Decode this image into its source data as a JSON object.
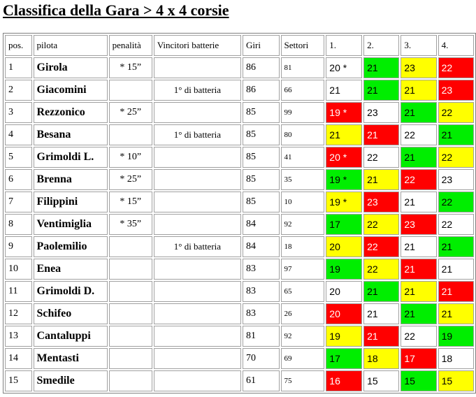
{
  "title": "Classifica della Gara > 4 x 4 corsie",
  "headers": {
    "pos": "pos.",
    "pilota": "pilota",
    "penalita": "penalità",
    "vincitori": "Vincitori batterie",
    "giri": "Giri",
    "settori": "Settori",
    "h1": "1.",
    "h2": "2.",
    "h3": "3.",
    "h4": "4."
  },
  "colors": {
    "green": "#00ee00",
    "yellow": "#ffff00",
    "red": "#ff0000",
    "white": "#ffffff"
  },
  "rows": [
    {
      "pos": "1",
      "pilota": "Girola",
      "penalita": "* 15”",
      "vincitori": "",
      "giri": "86",
      "settori": "81",
      "heats": [
        {
          "v": "20 *",
          "c": "white"
        },
        {
          "v": "21",
          "c": "green"
        },
        {
          "v": "23",
          "c": "yellow"
        },
        {
          "v": "22",
          "c": "red"
        }
      ]
    },
    {
      "pos": "2",
      "pilota": "Giacomini",
      "penalita": "",
      "vincitori": "1° di batteria",
      "giri": "86",
      "settori": "66",
      "heats": [
        {
          "v": "21",
          "c": "white"
        },
        {
          "v": "21",
          "c": "green"
        },
        {
          "v": "21",
          "c": "yellow"
        },
        {
          "v": "23",
          "c": "red"
        }
      ]
    },
    {
      "pos": "3",
      "pilota": "Rezzonico",
      "penalita": "* 25”",
      "vincitori": "",
      "giri": "85",
      "settori": "99",
      "heats": [
        {
          "v": "19 *",
          "c": "red"
        },
        {
          "v": "23",
          "c": "white"
        },
        {
          "v": "21",
          "c": "green"
        },
        {
          "v": "22",
          "c": "yellow"
        }
      ]
    },
    {
      "pos": "4",
      "pilota": "Besana",
      "penalita": "",
      "vincitori": "1° di batteria",
      "giri": "85",
      "settori": "80",
      "heats": [
        {
          "v": "21",
          "c": "yellow"
        },
        {
          "v": "21",
          "c": "red"
        },
        {
          "v": "22",
          "c": "white"
        },
        {
          "v": "21",
          "c": "green"
        }
      ]
    },
    {
      "pos": "5",
      "pilota": "Grimoldi L.",
      "penalita": "* 10”",
      "vincitori": "",
      "giri": "85",
      "settori": "41",
      "heats": [
        {
          "v": "20 *",
          "c": "red"
        },
        {
          "v": "22",
          "c": "white"
        },
        {
          "v": "21",
          "c": "green"
        },
        {
          "v": "22",
          "c": "yellow"
        }
      ]
    },
    {
      "pos": "6",
      "pilota": "Brenna",
      "penalita": "* 25”",
      "vincitori": "",
      "giri": "85",
      "settori": "35",
      "heats": [
        {
          "v": "19 *",
          "c": "green"
        },
        {
          "v": "21",
          "c": "yellow"
        },
        {
          "v": "22",
          "c": "red"
        },
        {
          "v": "23",
          "c": "white"
        }
      ]
    },
    {
      "pos": "7",
      "pilota": "Filippini",
      "penalita": "* 15”",
      "vincitori": "",
      "giri": "85",
      "settori": "10",
      "heats": [
        {
          "v": "19 *",
          "c": "yellow"
        },
        {
          "v": "23",
          "c": "red"
        },
        {
          "v": "21",
          "c": "white"
        },
        {
          "v": "22",
          "c": "green"
        }
      ]
    },
    {
      "pos": "8",
      "pilota": "Ventimiglia",
      "penalita": "* 35”",
      "vincitori": "",
      "giri": "84",
      "settori": "92",
      "heats": [
        {
          "v": "17",
          "c": "green"
        },
        {
          "v": "22",
          "c": "yellow"
        },
        {
          "v": "23",
          "c": "red"
        },
        {
          "v": "22",
          "c": "white"
        }
      ]
    },
    {
      "pos": "9",
      "pilota": "Paolemilio",
      "penalita": "",
      "vincitori": "1° di batteria",
      "giri": "84",
      "settori": "18",
      "heats": [
        {
          "v": "20",
          "c": "yellow"
        },
        {
          "v": "22",
          "c": "red"
        },
        {
          "v": "21",
          "c": "white"
        },
        {
          "v": "21",
          "c": "green"
        }
      ]
    },
    {
      "pos": "10",
      "pilota": "Enea",
      "penalita": "",
      "vincitori": "",
      "giri": "83",
      "settori": "97",
      "heats": [
        {
          "v": "19",
          "c": "green"
        },
        {
          "v": "22",
          "c": "yellow"
        },
        {
          "v": "21",
          "c": "red"
        },
        {
          "v": "21",
          "c": "white"
        }
      ]
    },
    {
      "pos": "11",
      "pilota": "Grimoldi D.",
      "penalita": "",
      "vincitori": "",
      "giri": "83",
      "settori": "65",
      "heats": [
        {
          "v": "20",
          "c": "white"
        },
        {
          "v": "21",
          "c": "green"
        },
        {
          "v": "21",
          "c": "yellow"
        },
        {
          "v": "21",
          "c": "red"
        }
      ]
    },
    {
      "pos": "12",
      "pilota": "Schifeo",
      "penalita": "",
      "vincitori": "",
      "giri": "83",
      "settori": "26",
      "heats": [
        {
          "v": "20",
          "c": "red"
        },
        {
          "v": "21",
          "c": "white"
        },
        {
          "v": "21",
          "c": "green"
        },
        {
          "v": "21",
          "c": "yellow"
        }
      ]
    },
    {
      "pos": "13",
      "pilota": "Cantaluppi",
      "penalita": "",
      "vincitori": "",
      "giri": "81",
      "settori": "92",
      "heats": [
        {
          "v": "19",
          "c": "yellow"
        },
        {
          "v": "21",
          "c": "red"
        },
        {
          "v": "22",
          "c": "white"
        },
        {
          "v": "19",
          "c": "green"
        }
      ]
    },
    {
      "pos": "14",
      "pilota": "Mentasti",
      "penalita": "",
      "vincitori": "",
      "giri": "70",
      "settori": "69",
      "heats": [
        {
          "v": "17",
          "c": "green"
        },
        {
          "v": "18",
          "c": "yellow"
        },
        {
          "v": "17",
          "c": "red"
        },
        {
          "v": "18",
          "c": "white"
        }
      ]
    },
    {
      "pos": "15",
      "pilota": "Smedile",
      "penalita": "",
      "vincitori": "",
      "giri": "61",
      "settori": "75",
      "heats": [
        {
          "v": "16",
          "c": "red"
        },
        {
          "v": "15",
          "c": "white"
        },
        {
          "v": "15",
          "c": "green"
        },
        {
          "v": "15",
          "c": "yellow"
        }
      ]
    }
  ]
}
